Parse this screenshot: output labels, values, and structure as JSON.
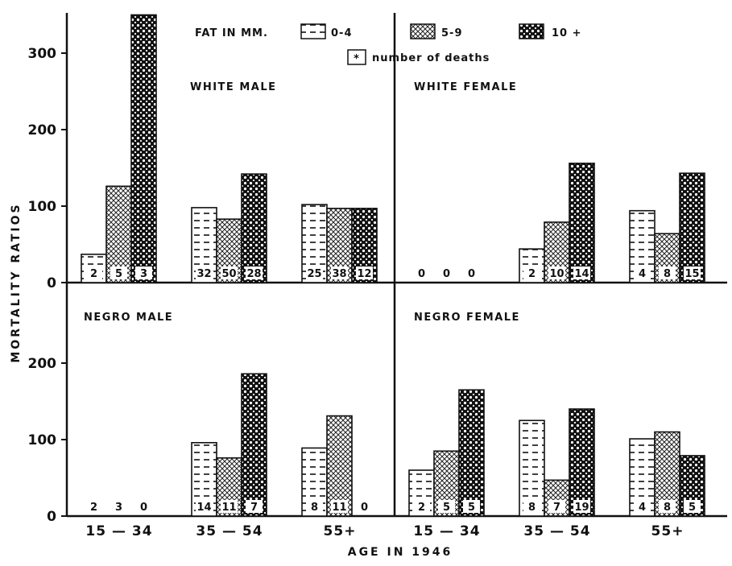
{
  "chart_data": {
    "type": "bar",
    "ylabel": "MORTALITY RATIOS",
    "xlabel": "AGE IN 1946",
    "legend": {
      "title": "FAT IN MM.",
      "note": "number of deaths",
      "note_symbol": "*",
      "entries": [
        {
          "label": "0-4",
          "pattern": "dashes"
        },
        {
          "label": "5-9",
          "pattern": "dots"
        },
        {
          "label": "10 +",
          "pattern": "dark-dots"
        }
      ],
      "placement": "top-center"
    },
    "yticks": [
      "0",
      "100",
      "200",
      "300"
    ],
    "ylim": [
      0,
      350
    ],
    "panels": [
      {
        "title": "WHITE MALE",
        "categories": [
          "15-34",
          "35-54",
          "55+"
        ],
        "values": [
          [
            37,
            126,
            350
          ],
          [
            98,
            83,
            142
          ],
          [
            102,
            97,
            97
          ]
        ],
        "deaths": [
          [
            "2",
            "5",
            "3"
          ],
          [
            "32",
            "50",
            "28"
          ],
          [
            "25",
            "38",
            "12"
          ]
        ]
      },
      {
        "title": "WHITE FEMALE",
        "categories": [
          "15-34",
          "35-54",
          "55+"
        ],
        "values": [
          [
            0,
            0,
            0
          ],
          [
            44,
            79,
            156
          ],
          [
            94,
            64,
            143
          ]
        ],
        "deaths": [
          [
            "0",
            "0",
            "0"
          ],
          [
            "2",
            "10",
            "14"
          ],
          [
            "4",
            "8",
            "15"
          ]
        ]
      },
      {
        "title": "NEGRO MALE",
        "categories": [
          "15-34",
          "35-54",
          "55+"
        ],
        "values": [
          [
            0,
            0,
            0
          ],
          [
            96,
            76,
            186
          ],
          [
            89,
            131,
            0
          ]
        ],
        "deaths": [
          [
            "2",
            "3",
            "0"
          ],
          [
            "14",
            "11",
            "7"
          ],
          [
            "8",
            "11",
            "0"
          ]
        ]
      },
      {
        "title": "NEGRO FEMALE",
        "categories": [
          "15-34",
          "35-54",
          "55+"
        ],
        "values": [
          [
            60,
            85,
            165
          ],
          [
            125,
            47,
            140
          ],
          [
            101,
            110,
            79
          ]
        ],
        "deaths": [
          [
            "2",
            "5",
            "5"
          ],
          [
            "8",
            "7",
            "19"
          ],
          [
            "4",
            "8",
            "5"
          ]
        ]
      }
    ],
    "xcategories": [
      "15 — 34",
      "35 — 54",
      "55+",
      "15 — 34",
      "35 — 54",
      "55+"
    ]
  }
}
